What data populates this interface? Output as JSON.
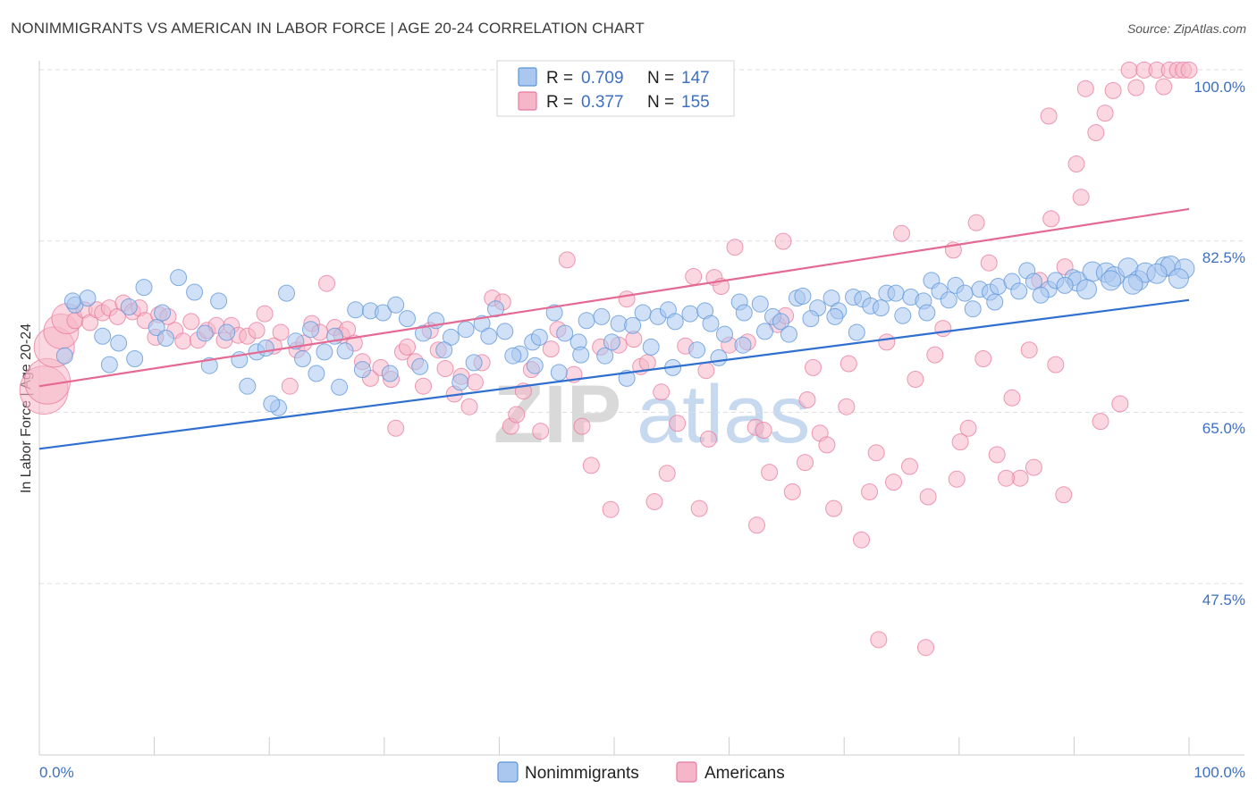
{
  "title": "NONIMMIGRANTS VS AMERICAN IN LABOR FORCE | AGE 20-24 CORRELATION CHART",
  "source": "Source: ZipAtlas.com",
  "watermark": {
    "part1": "ZIP",
    "part2": "atlas"
  },
  "legend_top": {
    "rows": [
      {
        "r_label": "R =",
        "r_value": "0.709",
        "n_label": "N =",
        "n_value": "147",
        "color": "#a9c7ef"
      },
      {
        "r_label": "R =",
        "r_value": "0.377",
        "n_label": "N =",
        "n_value": "155",
        "color": "#f6b6c9"
      }
    ]
  },
  "legend_bottom": {
    "items": [
      "Nonimmigrants",
      "Americans"
    ]
  },
  "chart_data": {
    "type": "scatter",
    "title": "NONIMMIGRANTS VS AMERICAN IN LABOR FORCE | AGE 20-24 CORRELATION CHART",
    "xlabel": "",
    "ylabel": "In Labor Force | Age 20-24",
    "xlim": [
      0,
      100
    ],
    "ylim": [
      30,
      103
    ],
    "x_tick_labels": [
      "0.0%",
      "100.0%"
    ],
    "y_tick_labels": [
      "100.0%",
      "82.5%",
      "65.0%",
      "47.5%"
    ],
    "y_tick_values": [
      100,
      82.5,
      65,
      47.5
    ],
    "grid": true,
    "series": [
      {
        "name": "Nonimmigrants",
        "color": "#5b94da",
        "fill": "#a9c7ef",
        "line_color": "#2f6fd0",
        "trend": {
          "x": [
            0,
            100
          ],
          "y": [
            63.0,
            78.2
          ]
        },
        "points": [
          [
            2.2,
            72.5
          ],
          [
            3.1,
            77.7
          ],
          [
            4.2,
            78.4
          ],
          [
            5.5,
            74.5
          ],
          [
            6.9,
            73.8
          ],
          [
            7.8,
            77.5
          ],
          [
            9.1,
            79.5
          ],
          [
            10.2,
            75.4
          ],
          [
            11.0,
            74.3
          ],
          [
            12.1,
            80.5
          ],
          [
            13.5,
            79.0
          ],
          [
            14.4,
            74.8
          ],
          [
            15.6,
            78.1
          ],
          [
            16.3,
            74.9
          ],
          [
            17.4,
            72.1
          ],
          [
            18.9,
            72.9
          ],
          [
            19.7,
            73.3
          ],
          [
            20.8,
            67.2
          ],
          [
            21.5,
            78.9
          ],
          [
            22.3,
            74.0
          ],
          [
            23.6,
            75.2
          ],
          [
            24.8,
            72.9
          ],
          [
            25.7,
            74.5
          ],
          [
            26.6,
            73.0
          ],
          [
            27.5,
            77.2
          ],
          [
            28.8,
            77.1
          ],
          [
            29.9,
            76.9
          ],
          [
            31.0,
            77.7
          ],
          [
            32.0,
            76.3
          ],
          [
            33.4,
            74.8
          ],
          [
            34.5,
            76.1
          ],
          [
            35.8,
            74.4
          ],
          [
            36.6,
            69.8
          ],
          [
            37.8,
            71.8
          ],
          [
            38.5,
            75.8
          ],
          [
            39.7,
            77.3
          ],
          [
            40.5,
            75.0
          ],
          [
            41.8,
            72.7
          ],
          [
            42.9,
            73.9
          ],
          [
            43.5,
            74.4
          ],
          [
            44.8,
            76.9
          ],
          [
            45.7,
            74.8
          ],
          [
            46.9,
            73.9
          ],
          [
            47.6,
            76.1
          ],
          [
            48.9,
            76.5
          ],
          [
            49.8,
            73.9
          ],
          [
            50.4,
            75.8
          ],
          [
            51.6,
            75.6
          ],
          [
            52.5,
            76.9
          ],
          [
            53.8,
            76.5
          ],
          [
            54.7,
            77.2
          ],
          [
            55.3,
            76.0
          ],
          [
            56.6,
            76.8
          ],
          [
            57.9,
            77.1
          ],
          [
            58.4,
            75.8
          ],
          [
            59.6,
            74.7
          ],
          [
            60.9,
            78.0
          ],
          [
            61.3,
            76.9
          ],
          [
            62.7,
            77.8
          ],
          [
            63.8,
            76.5
          ],
          [
            64.5,
            76.0
          ],
          [
            65.9,
            78.4
          ],
          [
            66.4,
            78.6
          ],
          [
            67.7,
            77.4
          ],
          [
            68.9,
            78.4
          ],
          [
            69.5,
            77.1
          ],
          [
            70.8,
            78.5
          ],
          [
            71.6,
            78.3
          ],
          [
            72.3,
            77.6
          ],
          [
            73.7,
            78.9
          ],
          [
            74.5,
            78.9
          ],
          [
            75.8,
            78.5
          ],
          [
            76.9,
            78.1
          ],
          [
            77.6,
            80.2
          ],
          [
            78.3,
            79.1
          ],
          [
            79.7,
            79.7
          ],
          [
            80.5,
            78.9
          ],
          [
            81.8,
            79.3
          ],
          [
            82.7,
            79.0
          ],
          [
            83.4,
            79.6
          ],
          [
            84.6,
            80.1
          ],
          [
            85.9,
            81.2
          ],
          [
            86.5,
            80.1
          ],
          [
            87.8,
            79.3
          ],
          [
            88.4,
            80.2
          ],
          [
            89.9,
            80.5
          ],
          [
            90.3,
            80.1
          ],
          [
            91.6,
            81.1
          ],
          [
            92.8,
            81.0
          ],
          [
            93.5,
            80.6
          ],
          [
            94.7,
            81.5
          ],
          [
            95.6,
            80.2
          ],
          [
            96.2,
            81.0
          ],
          [
            97.9,
            81.6
          ],
          [
            98.4,
            81.7
          ],
          [
            99.6,
            81.4
          ],
          [
            2.9,
            78.1
          ],
          [
            6.1,
            71.6
          ],
          [
            8.3,
            72.2
          ],
          [
            10.7,
            76.9
          ],
          [
            14.8,
            71.5
          ],
          [
            18.1,
            69.4
          ],
          [
            20.2,
            67.6
          ],
          [
            22.9,
            72.2
          ],
          [
            24.1,
            70.7
          ],
          [
            26.1,
            69.3
          ],
          [
            28.1,
            71.1
          ],
          [
            30.5,
            70.7
          ],
          [
            33.1,
            71.4
          ],
          [
            35.2,
            73.1
          ],
          [
            37.1,
            75.2
          ],
          [
            39.1,
            74.5
          ],
          [
            41.2,
            72.5
          ],
          [
            43.1,
            71.5
          ],
          [
            45.2,
            70.8
          ],
          [
            47.1,
            72.6
          ],
          [
            49.2,
            72.5
          ],
          [
            51.1,
            70.2
          ],
          [
            53.2,
            73.4
          ],
          [
            55.1,
            71.3
          ],
          [
            57.2,
            73.1
          ],
          [
            59.1,
            72.3
          ],
          [
            61.2,
            73.6
          ],
          [
            63.1,
            75.0
          ],
          [
            65.2,
            74.7
          ],
          [
            67.1,
            76.3
          ],
          [
            69.2,
            76.5
          ],
          [
            71.1,
            74.9
          ],
          [
            73.2,
            77.4
          ],
          [
            75.1,
            76.6
          ],
          [
            77.2,
            76.9
          ],
          [
            79.1,
            78.2
          ],
          [
            81.2,
            77.3
          ],
          [
            83.1,
            78.0
          ],
          [
            85.2,
            79.1
          ],
          [
            87.1,
            78.7
          ],
          [
            89.2,
            79.7
          ],
          [
            91.1,
            79.3
          ],
          [
            93.2,
            80.2
          ],
          [
            95.1,
            79.8
          ],
          [
            97.2,
            80.9
          ],
          [
            99.1,
            80.4
          ]
        ]
      },
      {
        "name": "Americans",
        "color": "#e87a9e",
        "fill": "#f6b6c9",
        "line_color": "#e46a93",
        "trend": {
          "x": [
            0,
            100
          ],
          "y": [
            69.4,
            87.5
          ]
        },
        "points": [
          [
            0.4,
            69.0
          ],
          [
            0.7,
            69.9
          ],
          [
            1.3,
            73.4
          ],
          [
            1.9,
            75.0
          ],
          [
            2.4,
            76.3
          ],
          [
            3.1,
            76.1
          ],
          [
            3.9,
            77.2
          ],
          [
            4.4,
            75.9
          ],
          [
            5.0,
            77.2
          ],
          [
            5.5,
            76.9
          ],
          [
            6.1,
            77.4
          ],
          [
            6.8,
            76.5
          ],
          [
            7.3,
            77.9
          ],
          [
            8.1,
            77.0
          ],
          [
            8.7,
            77.4
          ],
          [
            9.2,
            76.1
          ],
          [
            10.1,
            74.4
          ],
          [
            10.4,
            76.7
          ],
          [
            11.2,
            76.5
          ],
          [
            11.8,
            75.1
          ],
          [
            12.5,
            74.0
          ],
          [
            13.2,
            76.0
          ],
          [
            13.8,
            74.1
          ],
          [
            14.6,
            75.1
          ],
          [
            15.4,
            75.6
          ],
          [
            16.1,
            74.1
          ],
          [
            16.7,
            75.6
          ],
          [
            17.3,
            74.6
          ],
          [
            18.1,
            74.5
          ],
          [
            18.9,
            75.1
          ],
          [
            19.6,
            76.8
          ],
          [
            20.4,
            73.5
          ],
          [
            21.0,
            74.9
          ],
          [
            21.8,
            69.4
          ],
          [
            22.4,
            73.1
          ],
          [
            23.0,
            73.8
          ],
          [
            23.7,
            75.8
          ],
          [
            24.4,
            74.9
          ],
          [
            25.0,
            79.9
          ],
          [
            25.7,
            75.4
          ],
          [
            26.3,
            74.6
          ],
          [
            26.8,
            75.2
          ],
          [
            27.4,
            73.8
          ],
          [
            28.1,
            71.9
          ],
          [
            28.8,
            70.2
          ],
          [
            29.7,
            71.3
          ],
          [
            30.6,
            70.1
          ],
          [
            31.0,
            65.1
          ],
          [
            31.6,
            72.9
          ],
          [
            32.0,
            73.4
          ],
          [
            32.7,
            71.9
          ],
          [
            33.4,
            69.4
          ],
          [
            34.0,
            75.1
          ],
          [
            34.7,
            73.1
          ],
          [
            35.3,
            71.2
          ],
          [
            36.1,
            68.6
          ],
          [
            36.7,
            70.4
          ],
          [
            37.4,
            67.3
          ],
          [
            37.9,
            69.8
          ],
          [
            38.5,
            71.8
          ],
          [
            39.4,
            78.4
          ],
          [
            40.3,
            78.0
          ],
          [
            41.0,
            65.3
          ],
          [
            41.5,
            66.5
          ],
          [
            42.1,
            68.9
          ],
          [
            42.8,
            71.1
          ],
          [
            43.6,
            64.8
          ],
          [
            44.5,
            73.2
          ],
          [
            45.1,
            75.2
          ],
          [
            45.9,
            82.3
          ],
          [
            46.5,
            70.6
          ],
          [
            47.2,
            65.3
          ],
          [
            48.0,
            61.3
          ],
          [
            48.8,
            73.4
          ],
          [
            49.7,
            56.8
          ],
          [
            50.4,
            73.6
          ],
          [
            51.1,
            78.3
          ],
          [
            51.7,
            74.2
          ],
          [
            52.3,
            71.4
          ],
          [
            52.9,
            71.8
          ],
          [
            53.5,
            57.6
          ],
          [
            54.1,
            68.8
          ],
          [
            55.5,
            65.6
          ],
          [
            56.2,
            73.5
          ],
          [
            57.4,
            56.9
          ],
          [
            58.0,
            71.0
          ],
          [
            58.7,
            80.5
          ],
          [
            59.3,
            79.6
          ],
          [
            60.0,
            73.6
          ],
          [
            61.6,
            73.9
          ],
          [
            62.3,
            65.2
          ],
          [
            63.0,
            64.9
          ],
          [
            63.5,
            60.6
          ],
          [
            64.2,
            75.7
          ],
          [
            64.9,
            76.6
          ],
          [
            65.5,
            58.6
          ],
          [
            66.6,
            61.6
          ],
          [
            67.3,
            71.3
          ],
          [
            67.9,
            64.6
          ],
          [
            68.5,
            63.4
          ],
          [
            69.1,
            56.9
          ],
          [
            70.4,
            71.7
          ],
          [
            71.5,
            53.7
          ],
          [
            72.2,
            58.6
          ],
          [
            72.8,
            62.6
          ],
          [
            73.7,
            73.9
          ],
          [
            74.3,
            59.6
          ],
          [
            75.0,
            85.0
          ],
          [
            75.7,
            61.2
          ],
          [
            76.2,
            70.1
          ],
          [
            77.3,
            58.1
          ],
          [
            77.9,
            72.6
          ],
          [
            78.6,
            75.3
          ],
          [
            79.5,
            83.3
          ],
          [
            80.1,
            63.7
          ],
          [
            80.8,
            65.1
          ],
          [
            81.5,
            86.1
          ],
          [
            82.1,
            72.2
          ],
          [
            83.3,
            62.4
          ],
          [
            84.6,
            68.2
          ],
          [
            85.3,
            60.0
          ],
          [
            86.1,
            73.1
          ],
          [
            87.0,
            80.2
          ],
          [
            87.8,
            97.0
          ],
          [
            88.4,
            71.6
          ],
          [
            89.2,
            81.6
          ],
          [
            90.2,
            92.1
          ],
          [
            91.0,
            99.8
          ],
          [
            91.9,
            95.3
          ],
          [
            92.7,
            97.3
          ],
          [
            93.4,
            99.6
          ],
          [
            94.8,
            102.1
          ],
          [
            95.4,
            99.9
          ],
          [
            96.1,
            100.3
          ],
          [
            97.2,
            103.1
          ],
          [
            97.8,
            100.0
          ],
          [
            98.3,
            101.1
          ],
          [
            99.0,
            100.9
          ],
          [
            99.5,
            101.1
          ],
          [
            100.0,
            100.6
          ],
          [
            73.0,
            43.5
          ],
          [
            77.1,
            42.7
          ],
          [
            62.4,
            55.2
          ],
          [
            56.9,
            80.6
          ],
          [
            60.5,
            83.6
          ],
          [
            64.7,
            84.2
          ],
          [
            66.8,
            68.0
          ],
          [
            70.2,
            67.3
          ],
          [
            84.1,
            60.0
          ],
          [
            86.5,
            61.1
          ],
          [
            89.1,
            58.3
          ],
          [
            92.3,
            65.8
          ],
          [
            94.0,
            67.6
          ],
          [
            58.2,
            64.0
          ],
          [
            54.6,
            60.5
          ],
          [
            79.8,
            59.9
          ],
          [
            82.6,
            82.0
          ],
          [
            88.0,
            86.5
          ],
          [
            90.6,
            88.7
          ]
        ]
      }
    ]
  }
}
